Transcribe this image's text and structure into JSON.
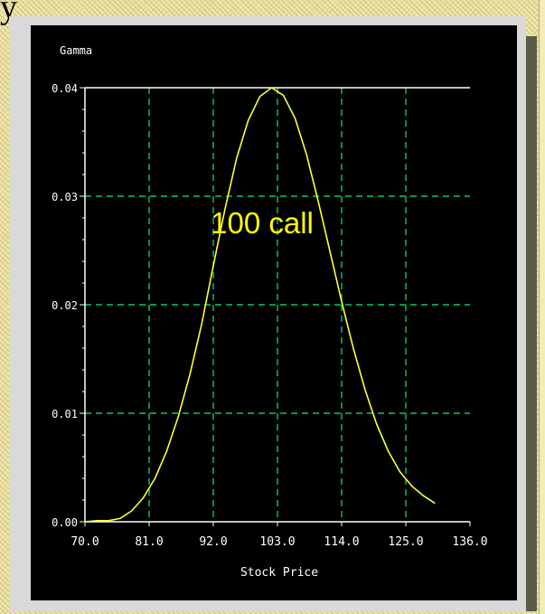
{
  "corner_glyph": "y",
  "chart_data": {
    "type": "line",
    "ylabel": "Gamma",
    "xlabel": "Stock Price",
    "annotation": "100 call",
    "xlim": [
      70,
      136
    ],
    "ylim": [
      0,
      0.04
    ],
    "x_ticks": [
      "70.0",
      "81.0",
      "92.0",
      "103.0",
      "114.0",
      "125.0",
      "136.0"
    ],
    "y_ticks": [
      "0.00",
      "0.01",
      "0.02",
      "0.03",
      "0.04"
    ],
    "grid": true,
    "series": [
      {
        "x": [
          70,
          72,
          74,
          76,
          78,
          80,
          82,
          84,
          86,
          88,
          90,
          92,
          94,
          96,
          98,
          100,
          102,
          104,
          106,
          108,
          110,
          112,
          114,
          116,
          118,
          120,
          122,
          124,
          126,
          128,
          130
        ],
        "y": [
          0.0,
          0.0001,
          0.0001,
          0.0003,
          0.001,
          0.0022,
          0.004,
          0.0065,
          0.0097,
          0.0136,
          0.0182,
          0.0236,
          0.0288,
          0.0335,
          0.037,
          0.0392,
          0.04,
          0.0393,
          0.0372,
          0.0338,
          0.0295,
          0.0249,
          0.0203,
          0.016,
          0.0122,
          0.009,
          0.0065,
          0.0046,
          0.0033,
          0.0024,
          0.0017
        ]
      }
    ],
    "colors": {
      "line": "#ffff33",
      "annotation": "#ffff00",
      "grid": "#00cc66",
      "axis": "#ffffff",
      "background": "#000000"
    }
  }
}
